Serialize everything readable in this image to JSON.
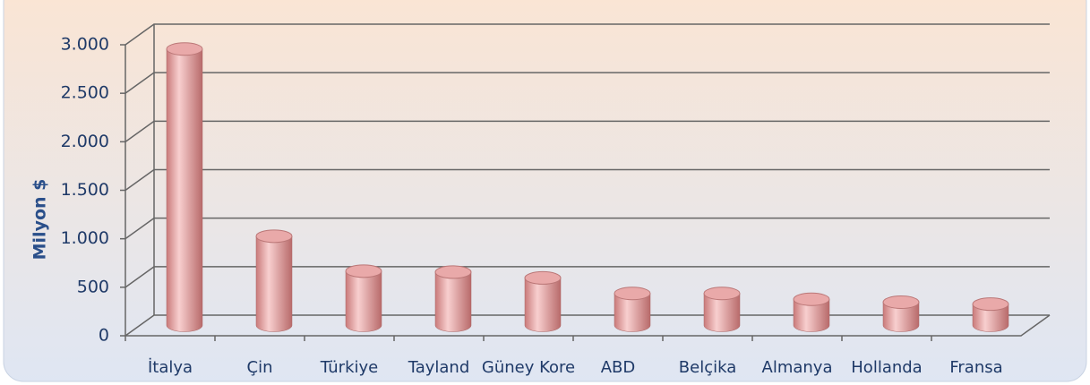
{
  "chart_data": {
    "type": "bar",
    "y_label": "Milyon $",
    "categories": [
      "İtalya",
      "Çin",
      "Türkiye",
      "Tayland",
      "Güney Kore",
      "ABD",
      "Belçika",
      "Almanya",
      "Hollanda",
      "Fransa"
    ],
    "values": [
      2850,
      920,
      560,
      550,
      490,
      330,
      330,
      270,
      240,
      220
    ],
    "color": "#e8a4a4",
    "ylim": [
      0,
      3000
    ],
    "yticks": [
      0,
      500,
      {
        "value": 1000,
        "label": "1.000"
      },
      {
        "value": 1500,
        "label": "1.500"
      },
      {
        "value": 2000,
        "label": "2.000"
      },
      {
        "value": 2500,
        "label": "2.500"
      },
      {
        "value": 3000,
        "label": "3.000"
      }
    ],
    "grid": true
  }
}
